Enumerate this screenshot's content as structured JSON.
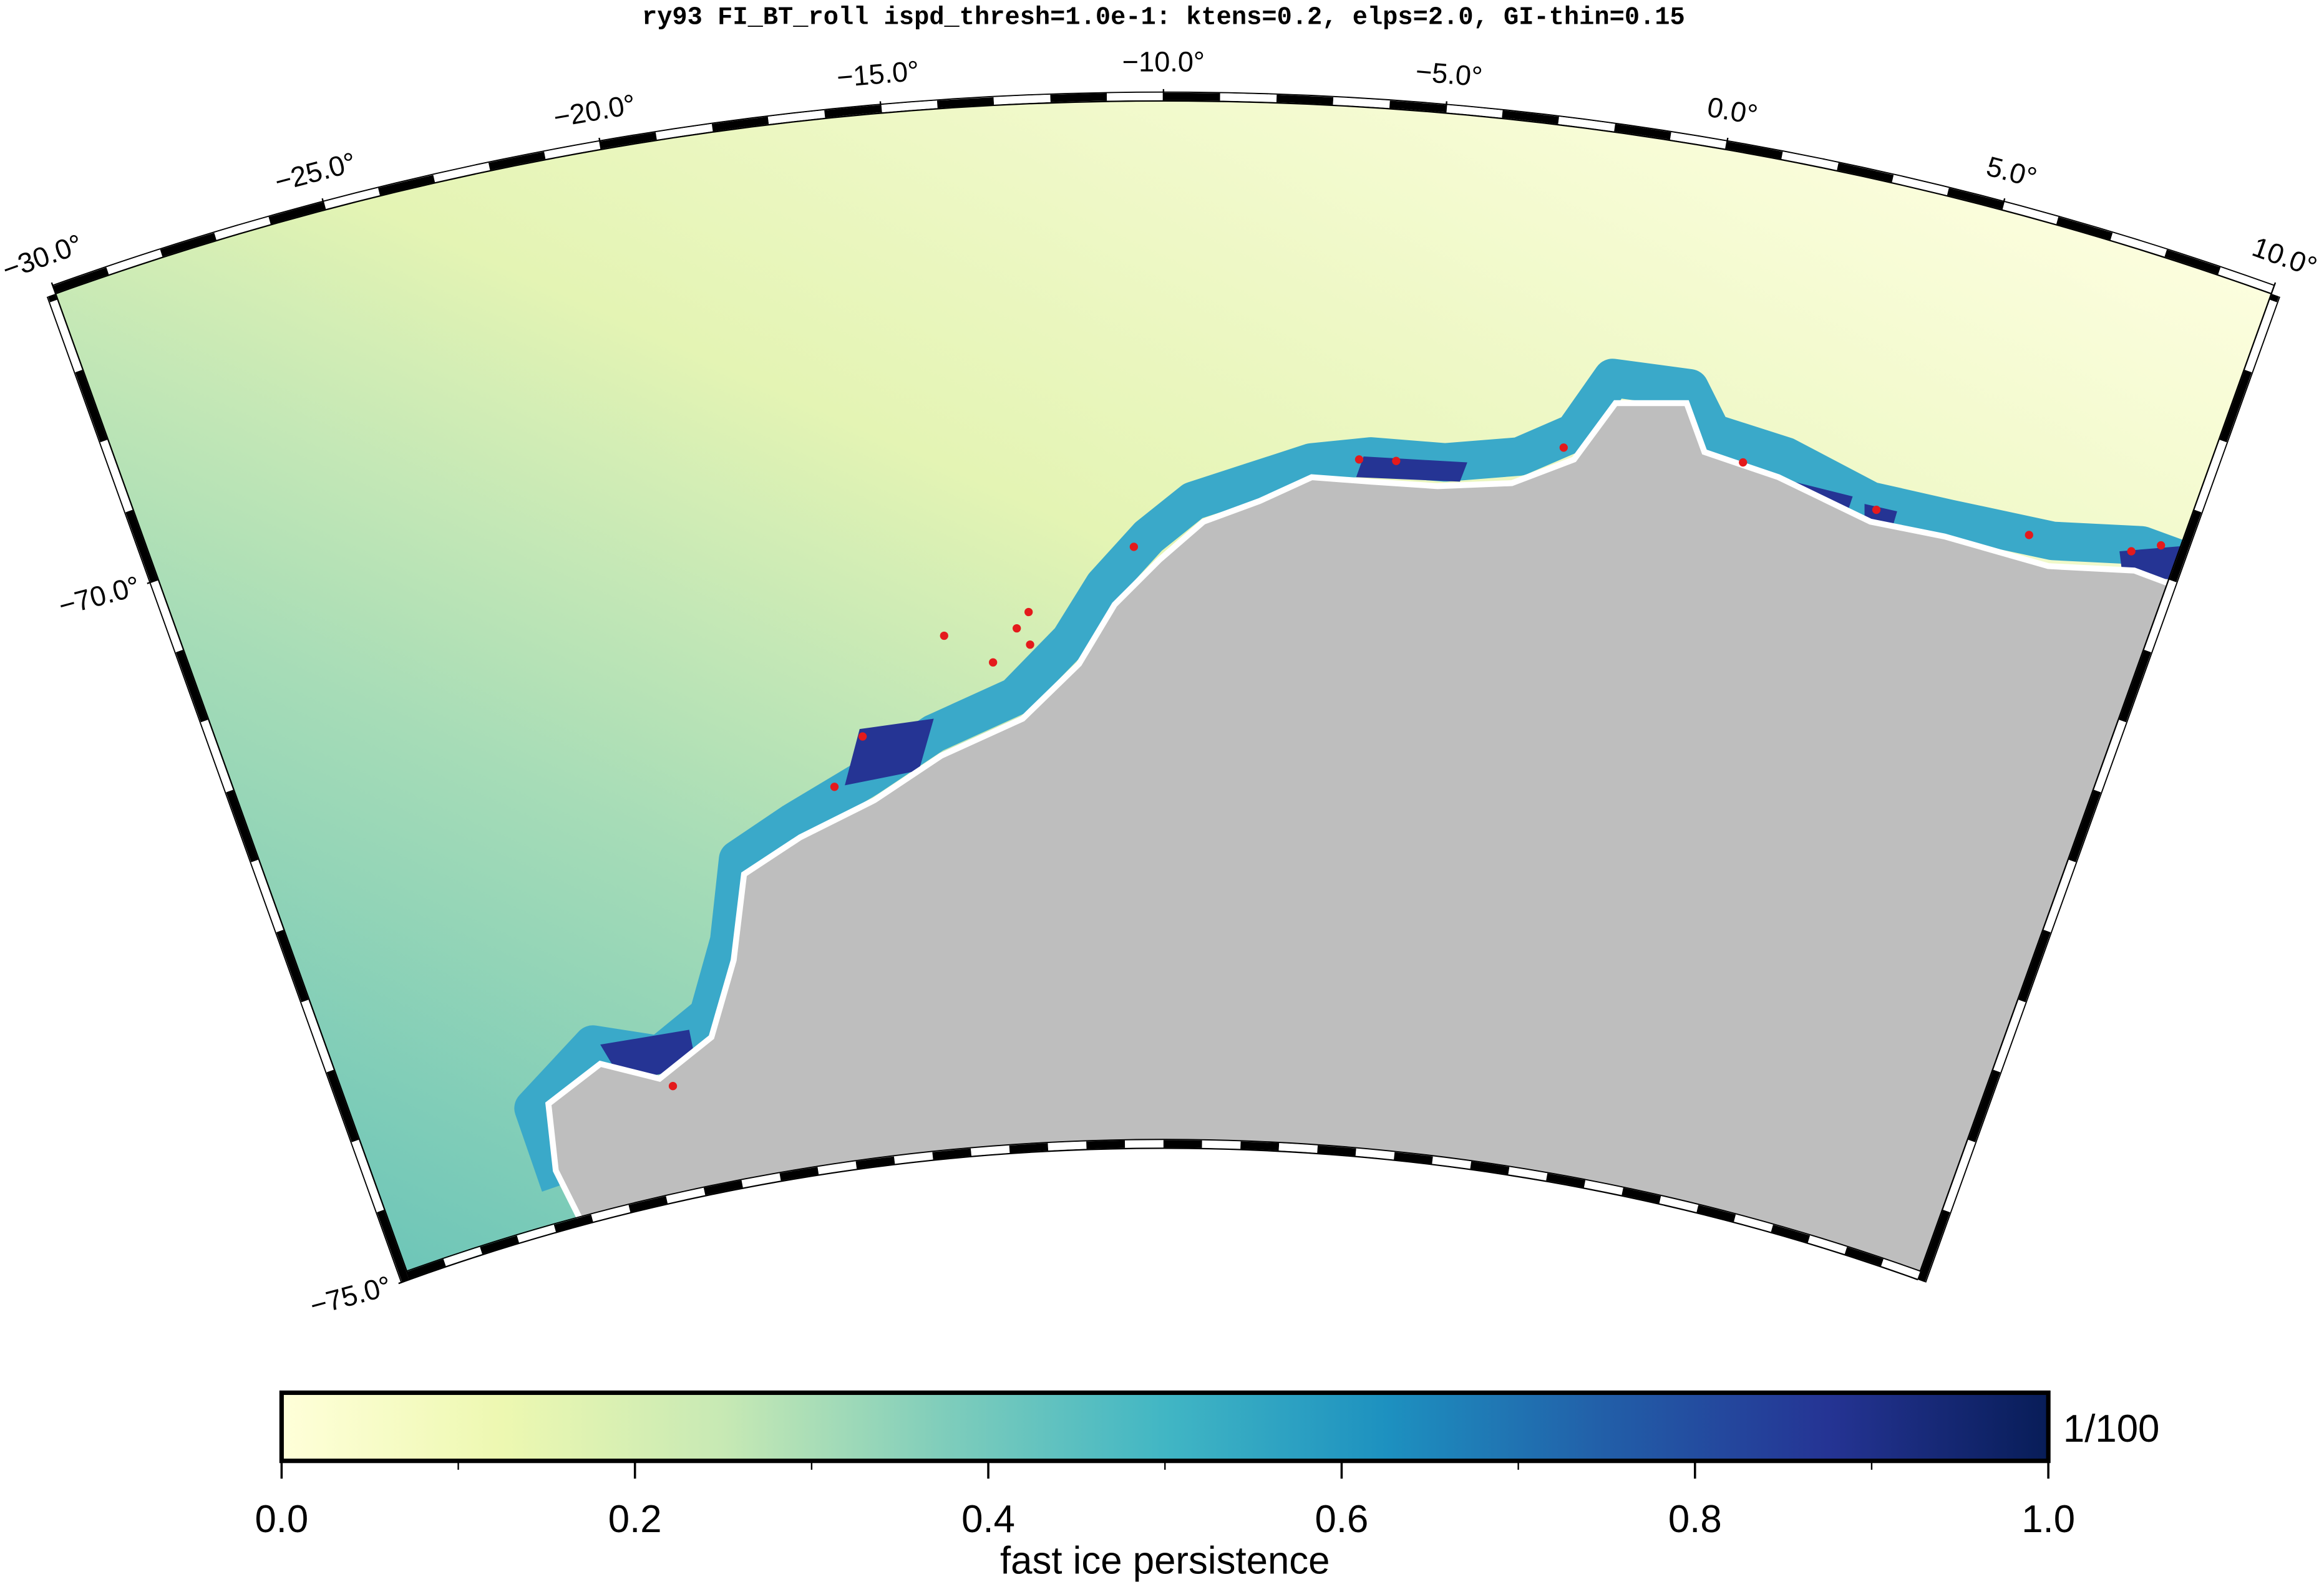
{
  "title": "ry93 FI_BT_roll ispd_thresh=1.0e-1: ktens=0.2, elps=2.0, GI-thin=0.15",
  "map": {
    "lon_labels": [
      {
        "value": -30,
        "label": "−30.0°"
      },
      {
        "value": -25,
        "label": "−25.0°"
      },
      {
        "value": -20,
        "label": "−20.0°"
      },
      {
        "value": -15,
        "label": "−15.0°"
      },
      {
        "value": -10,
        "label": "−10.0°"
      },
      {
        "value": -5,
        "label": "−5.0°"
      },
      {
        "value": 0,
        "label": "0.0°"
      },
      {
        "value": 5,
        "label": "5.0°"
      },
      {
        "value": 10,
        "label": "10.0°"
      }
    ],
    "lat_labels": [
      {
        "value": -70,
        "label": "−70.0°"
      },
      {
        "value": -75,
        "label": "−75.0°"
      }
    ]
  },
  "colorbar": {
    "label": "fast ice persistence",
    "unit_label": "1/100",
    "range": [
      0,
      1
    ],
    "ticks": [
      {
        "value": 0,
        "label": "0.0"
      },
      {
        "value": 0.2,
        "label": "0.2"
      },
      {
        "value": 0.4,
        "label": "0.4"
      },
      {
        "value": 0.6,
        "label": "0.6"
      },
      {
        "value": 0.8,
        "label": "0.8"
      },
      {
        "value": 1,
        "label": "1.0"
      }
    ],
    "colors": [
      "#ffffd9",
      "#edf8b1",
      "#c7e9b4",
      "#7fcdbb",
      "#41b6c4",
      "#1d91c0",
      "#225ea8",
      "#253494",
      "#081d58"
    ]
  }
}
